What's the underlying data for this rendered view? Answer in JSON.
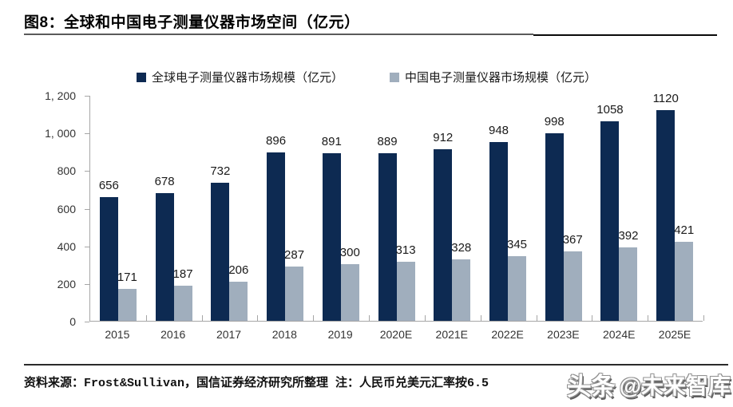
{
  "figure": {
    "title": "图8：全球和中国电子测量仪器市场空间（亿元）",
    "source_note": "资料来源：Frost&Sullivan，国信证券经济研究所整理 注：人民币兑美元汇率按6.5",
    "watermark": {
      "brand": "头条",
      "handle": "@未来智库"
    }
  },
  "colors": {
    "global_series": "#0d2a52",
    "china_series": "#a0aebd",
    "axis": "#a6a6a6",
    "title_text": "#000000",
    "label_text": "#1a1a1a"
  },
  "chart_data": {
    "type": "bar",
    "title": "图8：全球和中国电子测量仪器市场空间（亿元）",
    "categories": [
      "2015",
      "2016",
      "2017",
      "2018",
      "2019",
      "2020E",
      "2021E",
      "2022E",
      "2023E",
      "2024E",
      "2025E"
    ],
    "series": [
      {
        "name": "全球电子测量仪器市场规模（亿元）",
        "color": "#0d2a52",
        "values": [
          656,
          678,
          732,
          896,
          891,
          889,
          912,
          948,
          998,
          1058,
          1120
        ]
      },
      {
        "name": "中国电子测量仪器市场规模（亿元）",
        "color": "#a0aebd",
        "values": [
          171,
          187,
          206,
          287,
          300,
          313,
          328,
          345,
          367,
          392,
          421
        ]
      }
    ],
    "ylabel": "",
    "xlabel": "",
    "ylim": [
      0,
      1200
    ],
    "ytick_labels": [
      "0",
      "200",
      "400",
      "600",
      "800",
      "1, 000",
      "1, 200"
    ],
    "grid": false,
    "legend_position": "top",
    "data_labels": true
  }
}
